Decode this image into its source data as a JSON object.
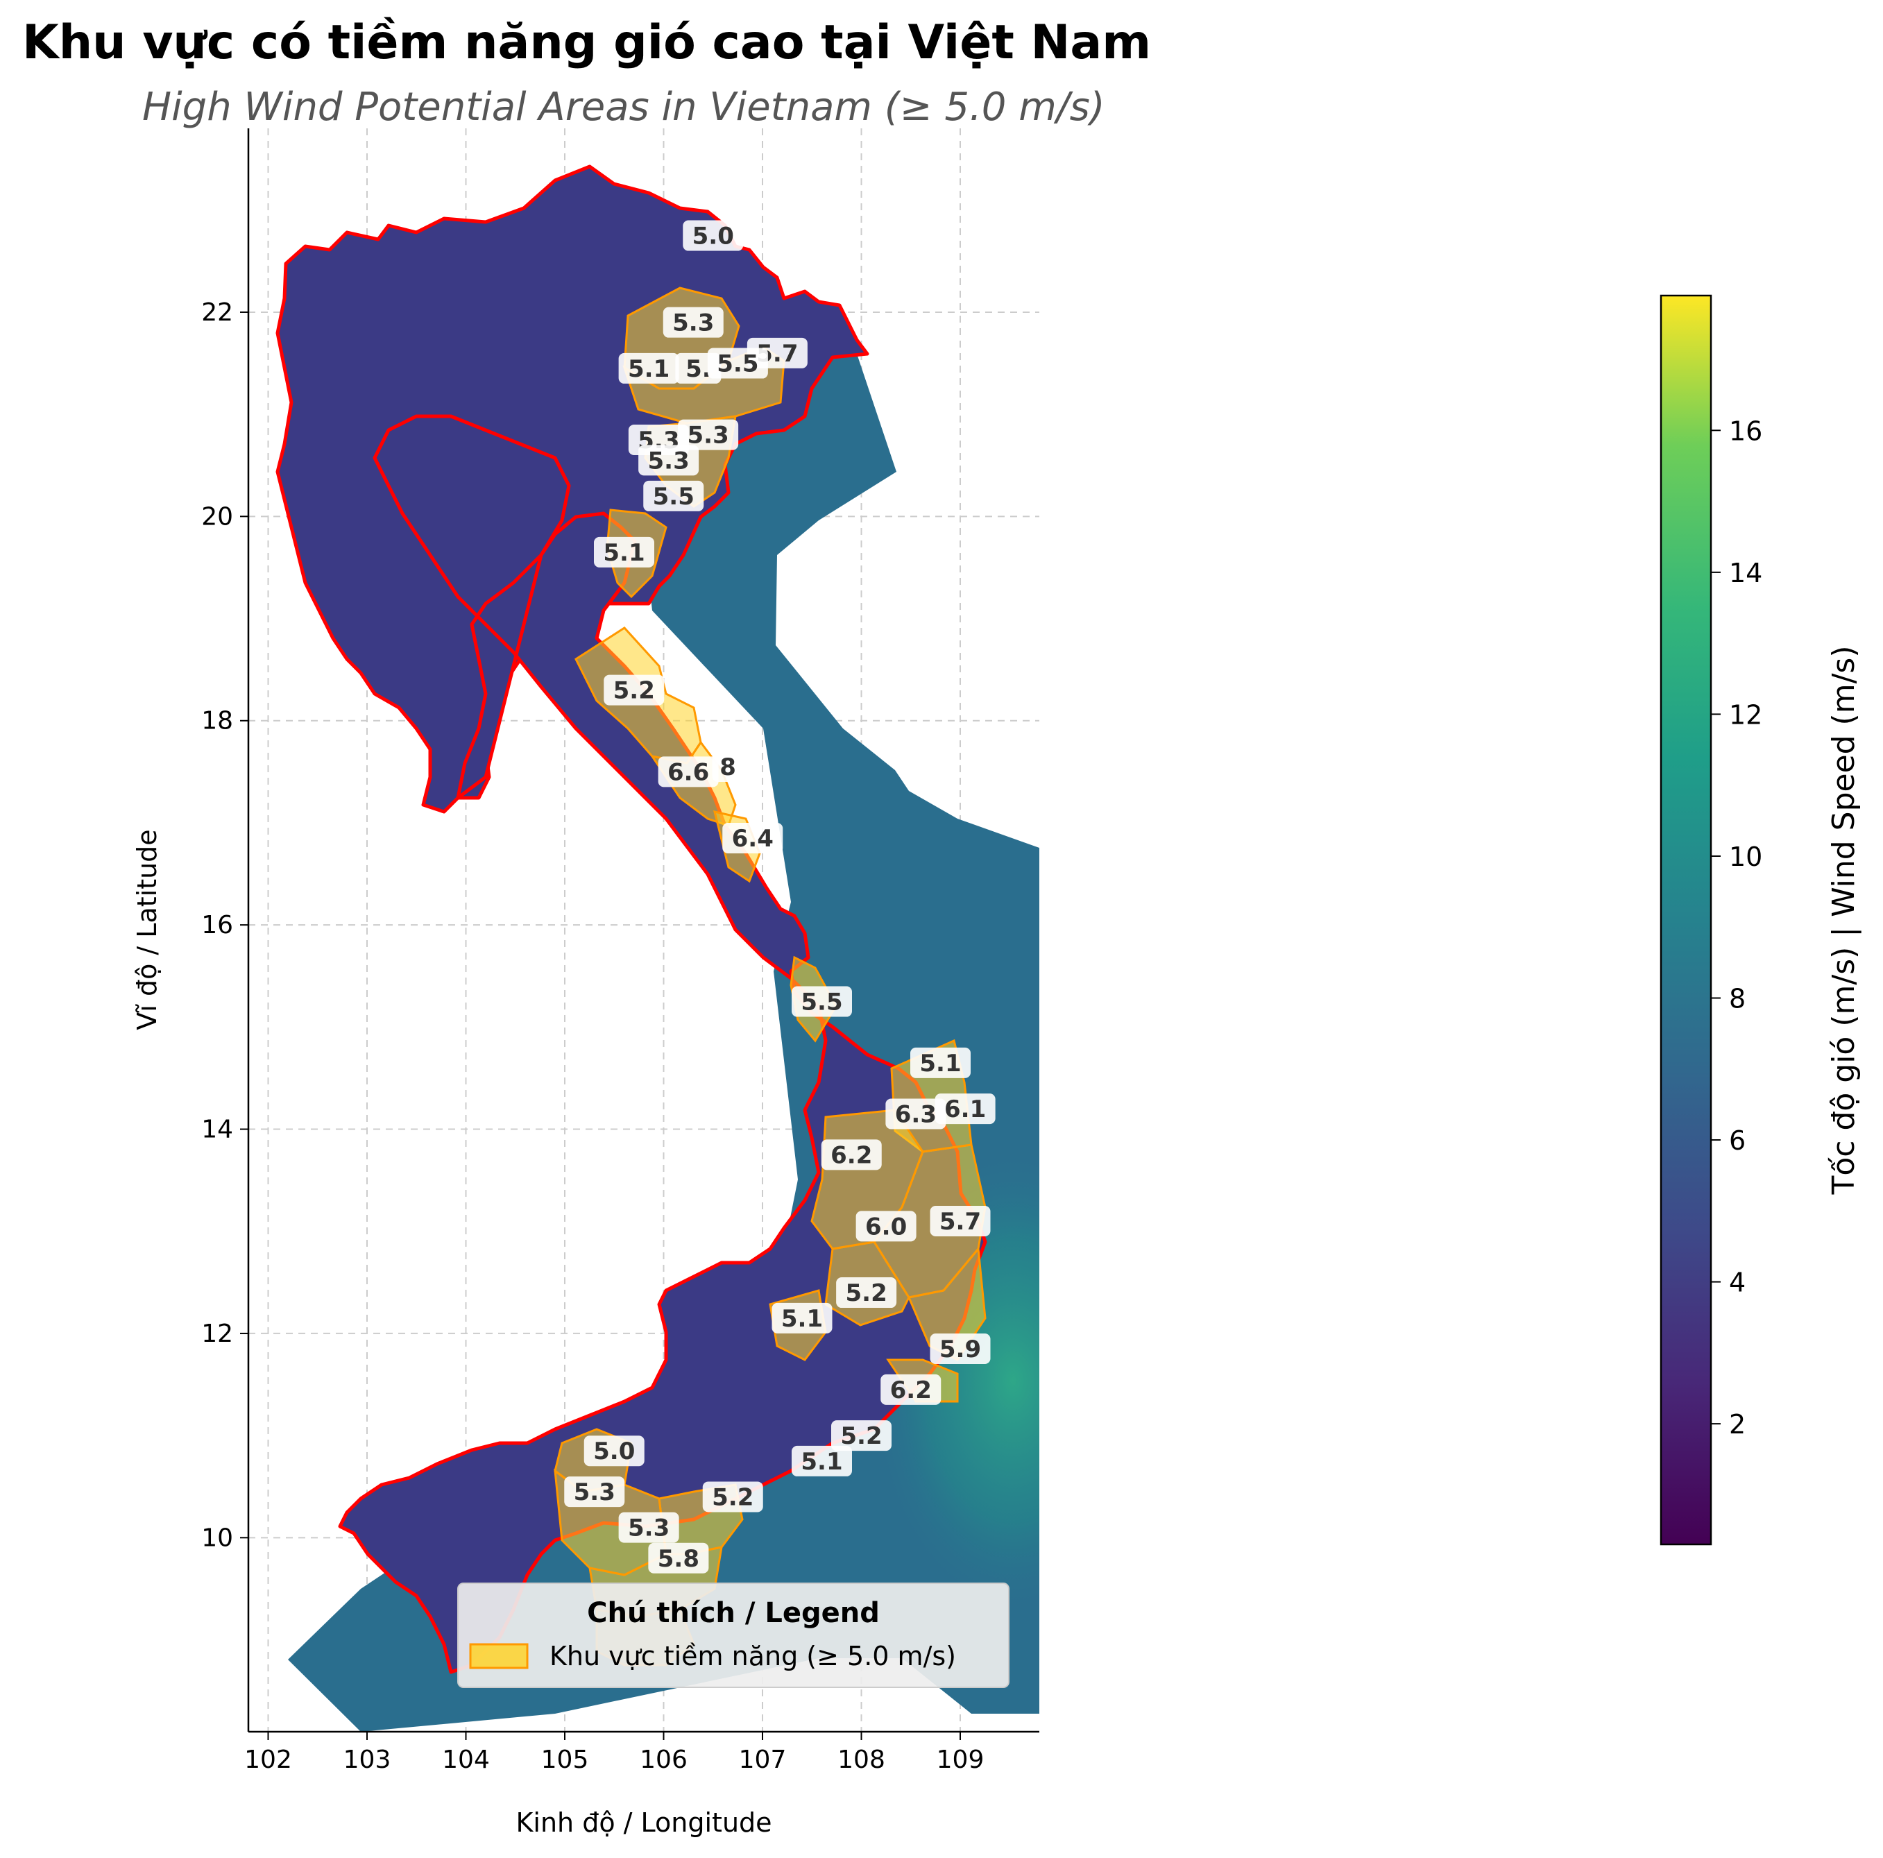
{
  "title": "Khu vực có tiềm năng gió cao tại Việt Nam",
  "subtitle": "High Wind Potential Areas in Vietnam (≥ 5.0 m/s)",
  "axes": {
    "xlabel": "Kinh độ / Longitude",
    "ylabel": "Vĩ độ / Latitude",
    "xticks": [
      "102",
      "103",
      "104",
      "105",
      "106",
      "107",
      "108",
      "109"
    ],
    "yticks": [
      "10",
      "12",
      "14",
      "16",
      "18",
      "20",
      "22"
    ],
    "xlim": [
      101.8,
      109.8
    ],
    "ylim": [
      8.1,
      23.8
    ],
    "grid": true
  },
  "colorbar": {
    "label": "Tốc độ gió (m/s) | Wind Speed (m/s)",
    "ticks": [
      "2",
      "4",
      "6",
      "8",
      "10",
      "12",
      "14",
      "16"
    ],
    "range": [
      0.3,
      17.9
    ],
    "colormap": "viridis"
  },
  "legend": {
    "title": "Chú thích / Legend",
    "entry": "Khu vực tiềm năng (≥ 5.0 m/s)",
    "placement": "lower-right"
  },
  "colors": {
    "zone_fill": "#ffd42a",
    "zone_edge": "#ff9900",
    "border": "#ff0000",
    "sea": "#2a6e8e",
    "land": "#3b3a85"
  },
  "chart_data": {
    "type": "map",
    "annotations": [
      {
        "text": "5.0",
        "lon": 106.5,
        "lat": 22.75
      },
      {
        "text": "5.3",
        "lon": 106.3,
        "lat": 21.9
      },
      {
        "text": "5.7",
        "lon": 107.15,
        "lat": 21.6
      },
      {
        "text": "5.1",
        "lon": 105.85,
        "lat": 21.45
      },
      {
        "text": "5.",
        "lon": 106.35,
        "lat": 21.45
      },
      {
        "text": "5.5",
        "lon": 106.75,
        "lat": 21.5
      },
      {
        "text": "5.3",
        "lon": 105.95,
        "lat": 20.75
      },
      {
        "text": "5.3",
        "lon": 106.45,
        "lat": 20.8
      },
      {
        "text": "5.3",
        "lon": 106.05,
        "lat": 20.55
      },
      {
        "text": "5.5",
        "lon": 106.1,
        "lat": 20.2
      },
      {
        "text": "5.1",
        "lon": 105.6,
        "lat": 19.65
      },
      {
        "text": "5.2",
        "lon": 105.7,
        "lat": 18.3
      },
      {
        "text": "6.6",
        "lon": 106.25,
        "lat": 17.5
      },
      {
        "text": "8",
        "lon": 106.65,
        "lat": 17.55
      },
      {
        "text": "6.4",
        "lon": 106.9,
        "lat": 16.85
      },
      {
        "text": "5.5",
        "lon": 107.6,
        "lat": 15.25
      },
      {
        "text": "5.1",
        "lon": 108.8,
        "lat": 14.65
      },
      {
        "text": "6.3",
        "lon": 108.55,
        "lat": 14.15
      },
      {
        "text": "6.1",
        "lon": 109.05,
        "lat": 14.2
      },
      {
        "text": "6.2",
        "lon": 107.9,
        "lat": 13.75
      },
      {
        "text": "6.0",
        "lon": 108.25,
        "lat": 13.05
      },
      {
        "text": "5.7",
        "lon": 109.0,
        "lat": 13.1
      },
      {
        "text": "5.2",
        "lon": 108.05,
        "lat": 12.4
      },
      {
        "text": "5.1",
        "lon": 107.4,
        "lat": 12.15
      },
      {
        "text": "5.9",
        "lon": 109.0,
        "lat": 11.85
      },
      {
        "text": "6.2",
        "lon": 108.5,
        "lat": 11.45
      },
      {
        "text": "5.2",
        "lon": 108.0,
        "lat": 11.0
      },
      {
        "text": "5.1",
        "lon": 107.6,
        "lat": 10.75
      },
      {
        "text": "5.0",
        "lon": 105.5,
        "lat": 10.85
      },
      {
        "text": "5.3",
        "lon": 105.3,
        "lat": 10.45
      },
      {
        "text": "5.2",
        "lon": 106.7,
        "lat": 10.4
      },
      {
        "text": "5.3",
        "lon": 105.85,
        "lat": 10.1
      },
      {
        "text": "5.8",
        "lon": 106.15,
        "lat": 9.8
      }
    ]
  }
}
